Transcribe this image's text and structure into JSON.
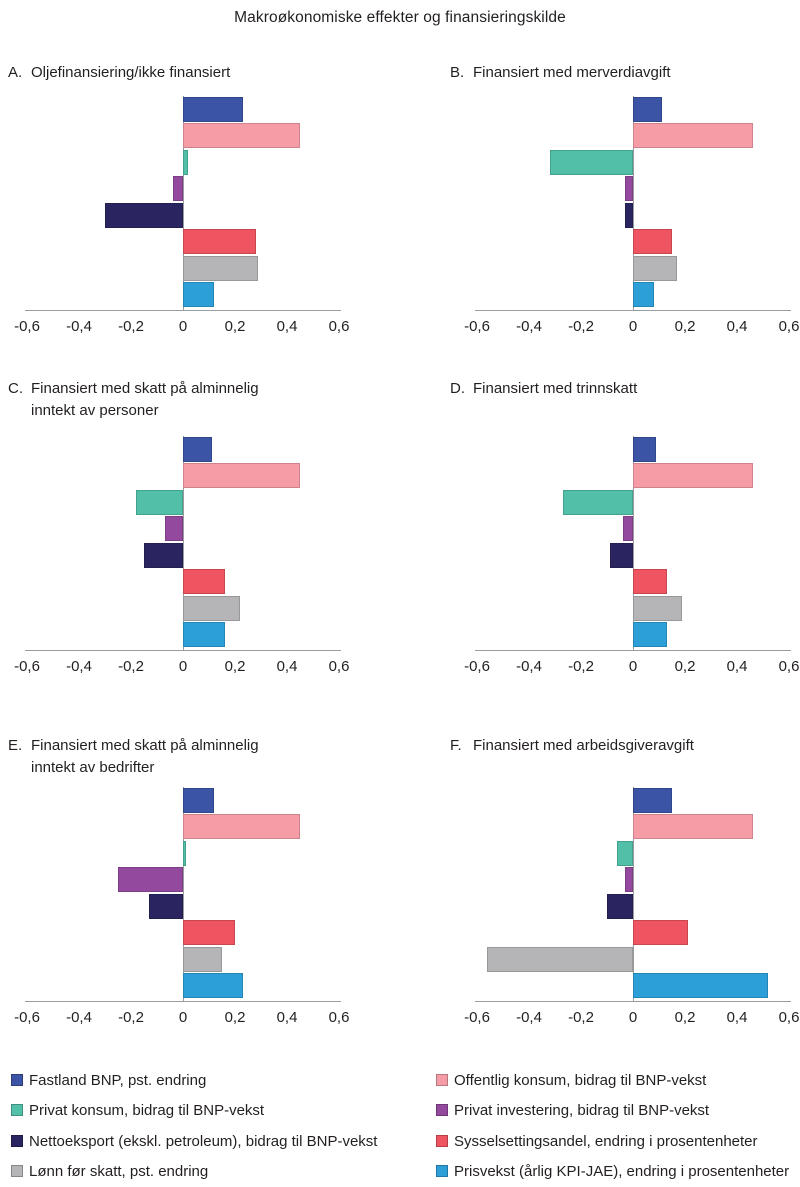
{
  "title": "Makroøkonomiske effekter og finansieringskilde",
  "chart_data": {
    "type": "bar",
    "orientation": "horizontal",
    "title": "Makroøkonomiske effekter og finansieringskilde",
    "xlabel": "",
    "ylabel": "",
    "xlim": [
      -0.6,
      0.6
    ],
    "grid": false,
    "x_ticks": [
      "-0,6",
      "-0,4",
      "-0,2",
      "0",
      "0,2",
      "0,4",
      "0,6"
    ],
    "x_tick_values": [
      -0.6,
      -0.4,
      -0.2,
      0,
      0.2,
      0.4,
      0.6
    ],
    "series": [
      {
        "name": "Fastland BNP, pst. endring",
        "color": "#3b54a5"
      },
      {
        "name": "Offentlig konsum, bidrag til BNP-vekst",
        "color": "#f59ca6"
      },
      {
        "name": "Privat konsum, bidrag til BNP-vekst",
        "color": "#52c0a9"
      },
      {
        "name": "Privat investering, bidrag til BNP-vekst",
        "color": "#93499d"
      },
      {
        "name": "Nettoeksport (ekskl. petroleum), bidrag til BNP-vekst",
        "color": "#2a2560"
      },
      {
        "name": "Sysselsettingsandel, endring i prosentenheter",
        "color": "#ee5560"
      },
      {
        "name": "Lønn før skatt, pst. endring",
        "color": "#b5b5b8"
      },
      {
        "name": "Prisvekst (årlig KPI-JAE), endring i prosentenheter",
        "color": "#2d9fd8"
      }
    ],
    "panels": [
      {
        "label": "A.",
        "title_lines": [
          "Oljefinansiering/ikke finansiert"
        ],
        "values": [
          0.23,
          0.45,
          0.02,
          -0.04,
          -0.3,
          0.28,
          0.29,
          0.12
        ]
      },
      {
        "label": "B.",
        "title_lines": [
          "Finansiert med merverdiavgift"
        ],
        "values": [
          0.11,
          0.46,
          -0.32,
          -0.03,
          -0.03,
          0.15,
          0.17,
          0.08
        ]
      },
      {
        "label": "C.",
        "title_lines": [
          "Finansiert med skatt på alminnelig",
          "inntekt av personer"
        ],
        "values": [
          0.11,
          0.45,
          -0.18,
          -0.07,
          -0.15,
          0.16,
          0.22,
          0.16
        ]
      },
      {
        "label": "D.",
        "title_lines": [
          "Finansiert med trinnskatt"
        ],
        "values": [
          0.09,
          0.46,
          -0.27,
          -0.04,
          -0.09,
          0.13,
          0.19,
          0.13
        ]
      },
      {
        "label": "E.",
        "title_lines": [
          "Finansiert med skatt på alminnelig",
          "inntekt av bedrifter"
        ],
        "values": [
          0.12,
          0.45,
          0.01,
          -0.25,
          -0.13,
          0.2,
          0.15,
          0.23
        ]
      },
      {
        "label": "F.",
        "title_lines": [
          "Finansiert med arbeidsgiveravgift"
        ],
        "values": [
          0.15,
          0.46,
          -0.06,
          -0.03,
          -0.1,
          0.21,
          -0.56,
          0.52
        ]
      }
    ],
    "legend": {
      "position": "bottom-two-columns",
      "left_series": [
        0,
        2,
        4,
        6
      ],
      "right_series": [
        1,
        3,
        5,
        7
      ]
    }
  }
}
